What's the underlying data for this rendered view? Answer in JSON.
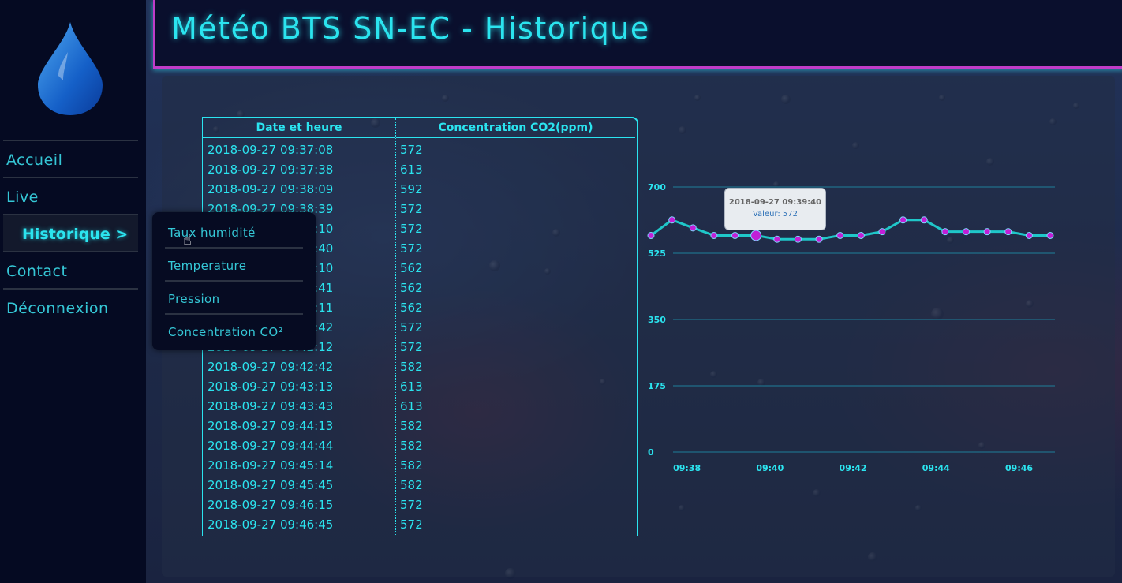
{
  "header": {
    "title": "Météo BTS SN-EC - Historique"
  },
  "sidebar": {
    "items": [
      {
        "label": "Accueil"
      },
      {
        "label": "Live"
      },
      {
        "label": "Historique >"
      },
      {
        "label": "Contact"
      },
      {
        "label": "Déconnexion"
      }
    ]
  },
  "dropdown": {
    "items": [
      {
        "label": "Taux humidité"
      },
      {
        "label": "Temperature"
      },
      {
        "label": "Pression"
      },
      {
        "label": "Concentration CO²"
      }
    ]
  },
  "table": {
    "headers": [
      "Date et heure",
      "Concentration CO2(ppm)"
    ],
    "rows": [
      [
        "2018-09-27 09:37:08",
        "572"
      ],
      [
        "2018-09-27 09:37:38",
        "613"
      ],
      [
        "2018-09-27 09:38:09",
        "592"
      ],
      [
        "2018-09-27 09:38:39",
        "572"
      ],
      [
        "2018-09-27 09:39:10",
        "572"
      ],
      [
        "2018-09-27 09:39:40",
        "572"
      ],
      [
        "2018-09-27 09:40:10",
        "562"
      ],
      [
        "2018-09-27 09:40:41",
        "562"
      ],
      [
        "2018-09-27 09:41:11",
        "562"
      ],
      [
        "2018-09-27 09:41:42",
        "572"
      ],
      [
        "2018-09-27 09:42:12",
        "572"
      ],
      [
        "2018-09-27 09:42:42",
        "582"
      ],
      [
        "2018-09-27 09:43:13",
        "613"
      ],
      [
        "2018-09-27 09:43:43",
        "613"
      ],
      [
        "2018-09-27 09:44:13",
        "582"
      ],
      [
        "2018-09-27 09:44:44",
        "582"
      ],
      [
        "2018-09-27 09:45:14",
        "582"
      ],
      [
        "2018-09-27 09:45:45",
        "582"
      ],
      [
        "2018-09-27 09:46:15",
        "572"
      ],
      [
        "2018-09-27 09:46:45",
        "572"
      ]
    ]
  },
  "tooltip": {
    "date": "2018-09-27 09:39:40",
    "value_label": "Valeur: 572"
  },
  "colors": {
    "accent": "#2be4ef",
    "marker": "#c21fd6",
    "line": "#1fc7c9",
    "border": "#c03cc8"
  },
  "chart_data": {
    "type": "line",
    "x": [
      "09:37:08",
      "09:37:38",
      "09:38:09",
      "09:38:39",
      "09:39:10",
      "09:39:40",
      "09:40:10",
      "09:40:41",
      "09:41:11",
      "09:41:42",
      "09:42:12",
      "09:42:42",
      "09:43:13",
      "09:43:43",
      "09:44:13",
      "09:44:44",
      "09:45:14",
      "09:45:45",
      "09:46:15",
      "09:46:45"
    ],
    "values": [
      572,
      613,
      592,
      572,
      572,
      572,
      562,
      562,
      562,
      572,
      572,
      582,
      613,
      613,
      582,
      582,
      582,
      582,
      572,
      572
    ],
    "x_ticks": [
      "09:38",
      "09:40",
      "09:42",
      "09:44",
      "09:46"
    ],
    "y_ticks": [
      0,
      175,
      350,
      525,
      700
    ],
    "ylim": [
      0,
      700
    ],
    "grid": true,
    "highlighted_index": 5
  }
}
